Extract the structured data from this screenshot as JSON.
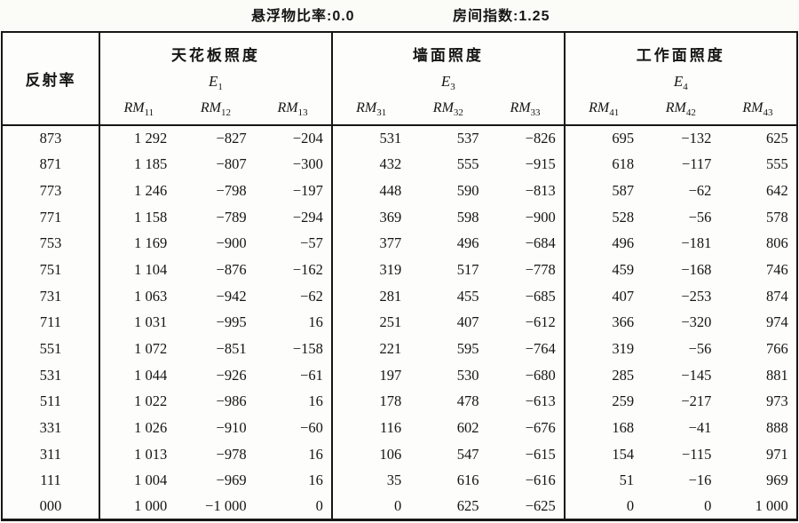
{
  "top": {
    "suspension_ratio": "悬浮物比率:0.0",
    "room_index": "房间指数:1.25"
  },
  "table": {
    "reflectance_header": "反射率",
    "groups": [
      {
        "title": "天花板照度",
        "e_base": "E",
        "e_sub": "1",
        "cols": [
          {
            "base": "RM",
            "sub": "11"
          },
          {
            "base": "RM",
            "sub": "12"
          },
          {
            "base": "RM",
            "sub": "13"
          }
        ]
      },
      {
        "title": "墙面照度",
        "e_base": "E",
        "e_sub": "3",
        "cols": [
          {
            "base": "RM",
            "sub": "31"
          },
          {
            "base": "RM",
            "sub": "32"
          },
          {
            "base": "RM",
            "sub": "33"
          }
        ]
      },
      {
        "title": "工作面照度",
        "e_base": "E",
        "e_sub": "4",
        "cols": [
          {
            "base": "RM",
            "sub": "41"
          },
          {
            "base": "RM",
            "sub": "42"
          },
          {
            "base": "RM",
            "sub": "43"
          }
        ]
      }
    ],
    "rows": [
      {
        "reflectance": "873",
        "values": [
          "1 292",
          "−827",
          "−204",
          "531",
          "537",
          "−826",
          "695",
          "−132",
          "625"
        ]
      },
      {
        "reflectance": "871",
        "values": [
          "1 185",
          "−807",
          "−300",
          "432",
          "555",
          "−915",
          "618",
          "−117",
          "555"
        ]
      },
      {
        "reflectance": "773",
        "values": [
          "1 246",
          "−798",
          "−197",
          "448",
          "590",
          "−813",
          "587",
          "−62",
          "642"
        ]
      },
      {
        "reflectance": "771",
        "values": [
          "1 158",
          "−789",
          "−294",
          "369",
          "598",
          "−900",
          "528",
          "−56",
          "578"
        ]
      },
      {
        "reflectance": "753",
        "values": [
          "1 169",
          "−900",
          "−57",
          "377",
          "496",
          "−684",
          "496",
          "−181",
          "806"
        ]
      },
      {
        "reflectance": "751",
        "values": [
          "1 104",
          "−876",
          "−162",
          "319",
          "517",
          "−778",
          "459",
          "−168",
          "746"
        ]
      },
      {
        "reflectance": "731",
        "values": [
          "1 063",
          "−942",
          "−62",
          "281",
          "455",
          "−685",
          "407",
          "−253",
          "874"
        ]
      },
      {
        "reflectance": "711",
        "values": [
          "1 031",
          "−995",
          "16",
          "251",
          "407",
          "−612",
          "366",
          "−320",
          "974"
        ]
      },
      {
        "reflectance": "551",
        "values": [
          "1 072",
          "−851",
          "−158",
          "221",
          "595",
          "−764",
          "319",
          "−56",
          "766"
        ]
      },
      {
        "reflectance": "531",
        "values": [
          "1 044",
          "−926",
          "−61",
          "197",
          "530",
          "−680",
          "285",
          "−145",
          "881"
        ]
      },
      {
        "reflectance": "511",
        "values": [
          "1 022",
          "−986",
          "16",
          "178",
          "478",
          "−613",
          "259",
          "−217",
          "973"
        ]
      },
      {
        "reflectance": "331",
        "values": [
          "1 026",
          "−910",
          "−60",
          "116",
          "602",
          "−676",
          "168",
          "−41",
          "888"
        ]
      },
      {
        "reflectance": "311",
        "values": [
          "1 013",
          "−978",
          "16",
          "106",
          "547",
          "−615",
          "154",
          "−115",
          "971"
        ]
      },
      {
        "reflectance": "111",
        "values": [
          "1 004",
          "−969",
          "16",
          "35",
          "616",
          "−616",
          "51",
          "−16",
          "969"
        ]
      },
      {
        "reflectance": "000",
        "values": [
          "1 000",
          "−1 000",
          "0",
          "0",
          "625",
          "−625",
          "0",
          "0",
          "1 000"
        ]
      }
    ]
  }
}
